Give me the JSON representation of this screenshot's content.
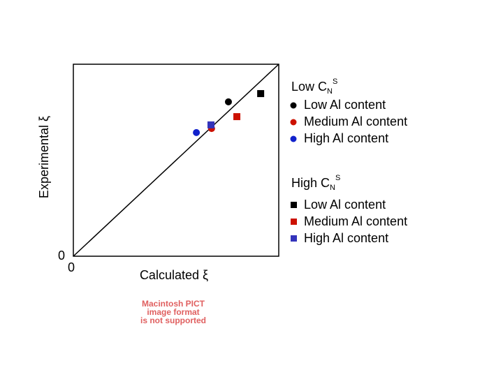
{
  "chart_data": {
    "type": "scatter",
    "xlabel": "Calculated ξ",
    "ylabel": "Experimental ξ",
    "xlim": [
      0,
      1
    ],
    "ylim": [
      0,
      1
    ],
    "xticks": [
      0
    ],
    "yticks": [
      0
    ],
    "diagonal": true,
    "legend_groups": [
      {
        "title": {
          "text": "Low C",
          "sub": "N",
          "sup": "S"
        }
      },
      {
        "title": {
          "text": "High C",
          "sub": "N",
          "sup": "S"
        }
      }
    ],
    "series": [
      {
        "name": "Low Al content",
        "group": 0,
        "marker": "circle",
        "color": "#000000",
        "x": [
          0.755
        ],
        "values": [
          0.804
        ]
      },
      {
        "name": "Medium Al content",
        "group": 0,
        "marker": "circle",
        "color": "#cc1100",
        "x": [
          0.673
        ],
        "values": [
          0.665
        ]
      },
      {
        "name": "High Al content",
        "group": 0,
        "marker": "circle",
        "color": "#1122cc",
        "x": [
          0.599
        ],
        "values": [
          0.644
        ]
      },
      {
        "name": "Low Al content",
        "group": 1,
        "marker": "square",
        "color": "#000000",
        "x": [
          0.912
        ],
        "values": [
          0.847
        ]
      },
      {
        "name": "Medium Al content",
        "group": 1,
        "marker": "square",
        "color": "#cc1100",
        "x": [
          0.796
        ],
        "values": [
          0.727
        ]
      },
      {
        "name": "High Al content",
        "group": 1,
        "marker": "square",
        "color": "#3333bb",
        "x": [
          0.67
        ],
        "values": [
          0.684
        ]
      }
    ],
    "placeholder": [
      "Macintosh PICT",
      "image format",
      "is not supported"
    ]
  }
}
